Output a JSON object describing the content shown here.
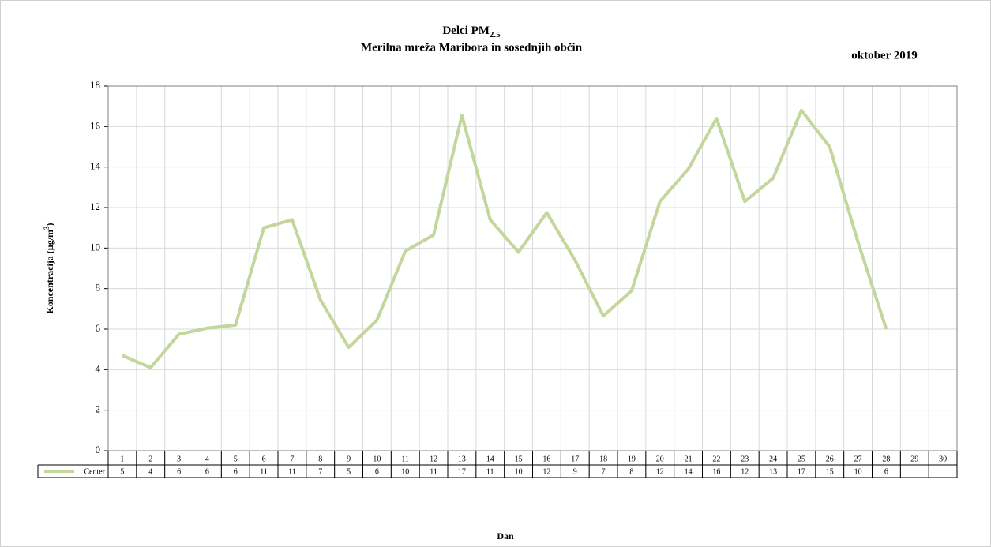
{
  "chart_data": {
    "type": "line",
    "title": "Delci PM",
    "title_subscript": "2.5",
    "subtitle": "Merilna mreža Maribora  in sosednjih občin",
    "period": "oktober 2019",
    "xlabel": "Dan",
    "ylabel": "Koncentracija  (µg/m",
    "ylabel_superscript": "3",
    "ylabel_end": ")",
    "categories": [
      "1",
      "2",
      "3",
      "4",
      "5",
      "6",
      "7",
      "8",
      "9",
      "10",
      "11",
      "12",
      "13",
      "14",
      "15",
      "16",
      "17",
      "18",
      "19",
      "20",
      "21",
      "22",
      "23",
      "24",
      "25",
      "26",
      "27",
      "28",
      "29",
      "30"
    ],
    "series": [
      {
        "name": "Center",
        "color": "#c3d69b",
        "values": [
          4.7,
          4.1,
          5.75,
          6.05,
          6.2,
          11.0,
          11.4,
          7.45,
          5.1,
          6.45,
          9.85,
          10.65,
          16.55,
          11.4,
          9.8,
          11.75,
          9.4,
          6.65,
          7.9,
          12.3,
          13.9,
          16.4,
          12.3,
          13.45,
          16.8,
          15.0,
          10.3,
          6.0,
          null,
          null
        ],
        "value_labels": [
          "5",
          "4",
          "6",
          "6",
          "6",
          "11",
          "11",
          "7",
          "5",
          "6",
          "10",
          "11",
          "17",
          "11",
          "10",
          "12",
          "9",
          "7",
          "8",
          "12",
          "14",
          "16",
          "12",
          "13",
          "17",
          "15",
          "10",
          "6",
          null,
          null
        ]
      }
    ],
    "ylim": [
      0,
      18
    ],
    "yticks": [
      0,
      2,
      4,
      6,
      8,
      10,
      12,
      14,
      16,
      18
    ],
    "grid": true
  }
}
